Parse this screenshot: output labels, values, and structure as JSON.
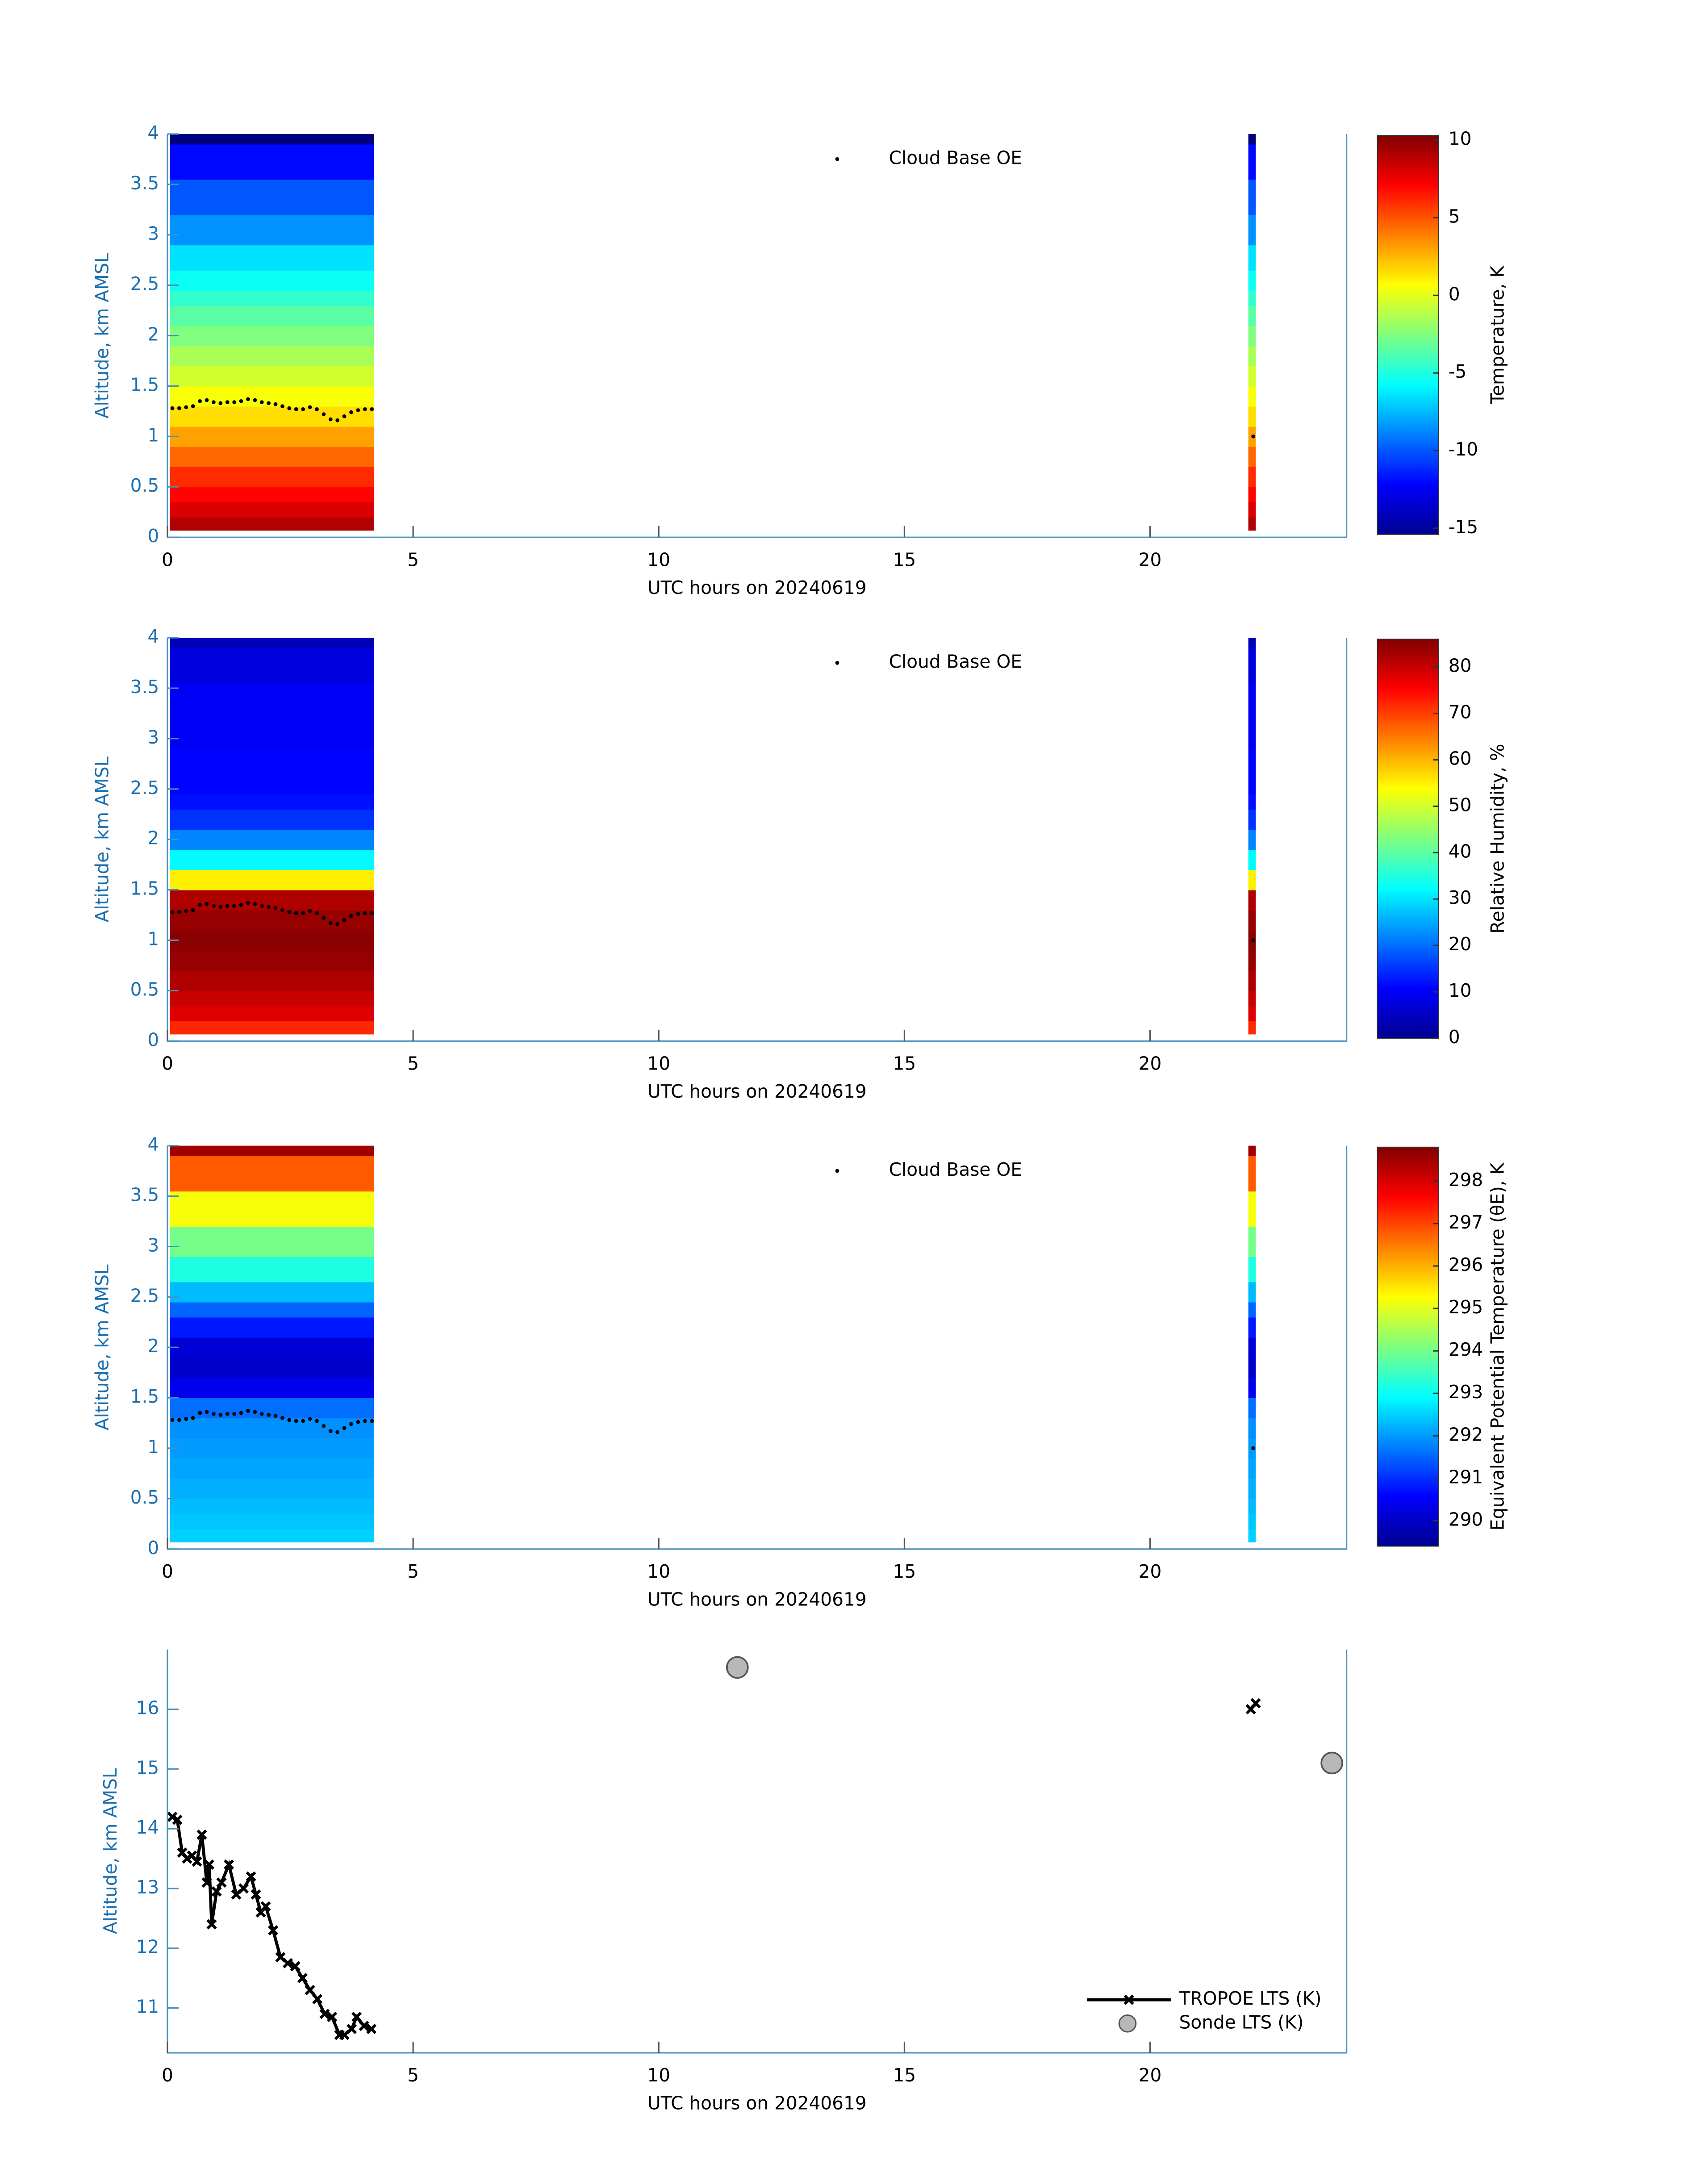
{
  "chart_data": [
    {
      "type": "heatmap",
      "xlabel": "UTC hours on 20240619",
      "ylabel": "Altitude, km AMSL",
      "colorbar_label": "Temperature, K",
      "xlim": [
        0,
        24
      ],
      "ylim": [
        0,
        4
      ],
      "xticks": [
        0,
        5,
        10,
        15,
        20
      ],
      "yticks": [
        0,
        0.5,
        1,
        1.5,
        2,
        2.5,
        3,
        3.5,
        4
      ],
      "clim": [
        -15.4,
        10.3
      ],
      "cticks": [
        -15,
        -10,
        -5,
        0,
        5,
        10
      ],
      "colormap": "jet",
      "y_edges": [
        0.07,
        0.2,
        0.35,
        0.5,
        0.7,
        0.9,
        1.1,
        1.3,
        1.5,
        1.7,
        1.9,
        2.1,
        2.3,
        2.45,
        2.65,
        2.9,
        3.2,
        3.55,
        3.9,
        4.0
      ],
      "blocks": [
        {
          "x_range": [
            0.05,
            4.2
          ],
          "values": [
            9,
            8,
            7,
            6,
            4.5,
            3,
            1.5,
            0.5,
            -0.5,
            -1.5,
            -2.5,
            -3.5,
            -4.5,
            -5.5,
            -6.5,
            -8.5,
            -10,
            -12,
            -15.5
          ]
        },
        {
          "x_range": [
            22.0,
            22.15
          ],
          "values": [
            9,
            8,
            7,
            6,
            4.5,
            3,
            1.5,
            0.5,
            -0.5,
            -1.5,
            -2.5,
            -3.5,
            -4.5,
            -5.5,
            -6.5,
            -8.5,
            -10,
            -12,
            -15.5
          ]
        }
      ],
      "series": [
        {
          "name": "Cloud Base OE",
          "color": "#000000",
          "x": [
            0.1,
            0.24,
            0.38,
            0.52,
            0.66,
            0.8,
            0.94,
            1.08,
            1.22,
            1.36,
            1.5,
            1.64,
            1.78,
            1.92,
            2.06,
            2.2,
            2.34,
            2.48,
            2.62,
            2.76,
            2.9,
            3.04,
            3.18,
            3.32,
            3.46,
            3.6,
            3.74,
            3.88,
            4.02,
            4.16,
            22.1
          ],
          "values": [
            1.28,
            1.28,
            1.29,
            1.3,
            1.35,
            1.36,
            1.34,
            1.33,
            1.34,
            1.34,
            1.35,
            1.37,
            1.36,
            1.34,
            1.33,
            1.32,
            1.3,
            1.28,
            1.27,
            1.27,
            1.29,
            1.27,
            1.22,
            1.17,
            1.16,
            1.2,
            1.24,
            1.26,
            1.27,
            1.27,
            1.0
          ]
        }
      ]
    },
    {
      "type": "heatmap",
      "xlabel": "UTC hours on 20240619",
      "ylabel": "Altitude, km AMSL",
      "colorbar_label": "Relative Humidity, %",
      "xlim": [
        0,
        24
      ],
      "ylim": [
        0,
        4
      ],
      "xticks": [
        0,
        5,
        10,
        15,
        20
      ],
      "yticks": [
        0,
        0.5,
        1,
        1.5,
        2,
        2.5,
        3,
        3.5,
        4
      ],
      "clim": [
        0,
        86
      ],
      "cticks": [
        0,
        10,
        20,
        30,
        40,
        50,
        60,
        70,
        80
      ],
      "colormap": "jet",
      "y_edges": [
        0.07,
        0.2,
        0.35,
        0.5,
        0.7,
        0.9,
        1.1,
        1.3,
        1.5,
        1.7,
        1.9,
        2.1,
        2.3,
        2.45,
        2.65,
        2.9,
        3.2,
        3.55,
        3.9,
        4.0
      ],
      "blocks": [
        {
          "x_range": [
            0.05,
            4.2
          ],
          "values": [
            72,
            78,
            80,
            82,
            84,
            85,
            84,
            82,
            55,
            32,
            22,
            15,
            12,
            11,
            11,
            10,
            10,
            8,
            5
          ]
        },
        {
          "x_range": [
            22.0,
            22.15
          ],
          "values": [
            72,
            78,
            80,
            82,
            84,
            85,
            84,
            82,
            55,
            32,
            22,
            15,
            12,
            11,
            11,
            10,
            10,
            8,
            5
          ]
        }
      ],
      "series": [
        {
          "name": "Cloud Base OE",
          "color": "#000000",
          "x": [
            0.1,
            0.24,
            0.38,
            0.52,
            0.66,
            0.8,
            0.94,
            1.08,
            1.22,
            1.36,
            1.5,
            1.64,
            1.78,
            1.92,
            2.06,
            2.2,
            2.34,
            2.48,
            2.62,
            2.76,
            2.9,
            3.04,
            3.18,
            3.32,
            3.46,
            3.6,
            3.74,
            3.88,
            4.02,
            4.16,
            22.1
          ],
          "values": [
            1.28,
            1.28,
            1.29,
            1.3,
            1.35,
            1.36,
            1.34,
            1.33,
            1.34,
            1.34,
            1.35,
            1.37,
            1.36,
            1.34,
            1.33,
            1.32,
            1.3,
            1.28,
            1.27,
            1.27,
            1.29,
            1.27,
            1.22,
            1.17,
            1.16,
            1.2,
            1.24,
            1.26,
            1.27,
            1.27,
            1.0
          ]
        }
      ]
    },
    {
      "type": "heatmap",
      "xlabel": "UTC hours on 20240619",
      "ylabel": "Altitude, km AMSL",
      "colorbar_label": "Equivalent Potential Temperature (θE), K",
      "xlim": [
        0,
        24
      ],
      "ylim": [
        0,
        4
      ],
      "xticks": [
        0,
        5,
        10,
        15,
        20
      ],
      "yticks": [
        0,
        0.5,
        1,
        1.5,
        2,
        2.5,
        3,
        3.5,
        4
      ],
      "clim": [
        289.4,
        298.8
      ],
      "cticks": [
        290,
        291,
        292,
        293,
        294,
        295,
        296,
        297,
        298
      ],
      "colormap": "jet",
      "y_edges": [
        0.07,
        0.2,
        0.35,
        0.5,
        0.7,
        0.9,
        1.1,
        1.3,
        1.5,
        1.7,
        1.9,
        2.1,
        2.3,
        2.45,
        2.65,
        2.9,
        3.2,
        3.55,
        3.9,
        4.0
      ],
      "blocks": [
        {
          "x_range": [
            0.05,
            4.2
          ],
          "values": [
            292.5,
            292.4,
            292.3,
            292.2,
            292.1,
            292,
            291.9,
            291.6,
            290.4,
            290.1,
            290.2,
            290.8,
            291.5,
            292.3,
            293.2,
            294,
            295.2,
            296.8,
            298.5
          ]
        },
        {
          "x_range": [
            22.0,
            22.15
          ],
          "values": [
            292.5,
            292.4,
            292.3,
            292.2,
            292.1,
            292,
            291.9,
            291.6,
            290.4,
            290.1,
            290.2,
            290.8,
            291.5,
            292.3,
            293.2,
            294,
            295.2,
            296.8,
            298.5
          ]
        }
      ],
      "series": [
        {
          "name": "Cloud Base OE",
          "color": "#000000",
          "x": [
            0.1,
            0.24,
            0.38,
            0.52,
            0.66,
            0.8,
            0.94,
            1.08,
            1.22,
            1.36,
            1.5,
            1.64,
            1.78,
            1.92,
            2.06,
            2.2,
            2.34,
            2.48,
            2.62,
            2.76,
            2.9,
            3.04,
            3.18,
            3.32,
            3.46,
            3.6,
            3.74,
            3.88,
            4.02,
            4.16,
            22.1
          ],
          "values": [
            1.28,
            1.28,
            1.29,
            1.3,
            1.35,
            1.36,
            1.34,
            1.33,
            1.34,
            1.34,
            1.35,
            1.37,
            1.36,
            1.34,
            1.33,
            1.32,
            1.3,
            1.28,
            1.27,
            1.27,
            1.29,
            1.27,
            1.22,
            1.17,
            1.16,
            1.2,
            1.24,
            1.26,
            1.27,
            1.27,
            1.0
          ]
        }
      ]
    },
    {
      "type": "line",
      "xlabel": "UTC hours on 20240619",
      "ylabel": "Altitude, km AMSL",
      "xlim": [
        0,
        24
      ],
      "ylim": [
        10.25,
        17
      ],
      "xticks": [
        0,
        5,
        10,
        15,
        20
      ],
      "yticks": [
        11,
        12,
        13,
        14,
        15,
        16
      ],
      "series": [
        {
          "name": "TROPOE LTS (K)",
          "color": "#000000",
          "mode": "line",
          "x": [
            0.1,
            0.2,
            0.3,
            0.4,
            0.5,
            0.6,
            0.7,
            0.8,
            0.85,
            0.9,
            1.0,
            1.1,
            1.25,
            1.4,
            1.55,
            1.7,
            1.8,
            1.9,
            2.0,
            2.15,
            2.3,
            2.45,
            2.6,
            2.75,
            2.9,
            3.05,
            3.2,
            3.35,
            3.5,
            3.6,
            3.75,
            3.85,
            4.0,
            4.15,
            null,
            22.05,
            22.15
          ],
          "values": [
            14.2,
            14.15,
            13.6,
            13.5,
            13.55,
            13.45,
            13.9,
            13.1,
            13.4,
            12.4,
            12.95,
            13.1,
            13.4,
            12.9,
            13.0,
            13.2,
            12.9,
            12.6,
            12.7,
            12.3,
            11.85,
            11.75,
            11.7,
            11.5,
            11.3,
            11.15,
            10.9,
            10.85,
            10.55,
            10.55,
            10.65,
            10.85,
            10.7,
            10.65,
            null,
            16.0,
            16.1
          ]
        },
        {
          "name": "Sonde LTS (K)",
          "color": "#b8b8b8",
          "mode": "marker",
          "x": [
            11.6,
            23.7
          ],
          "values": [
            16.7,
            15.1
          ]
        }
      ]
    }
  ]
}
